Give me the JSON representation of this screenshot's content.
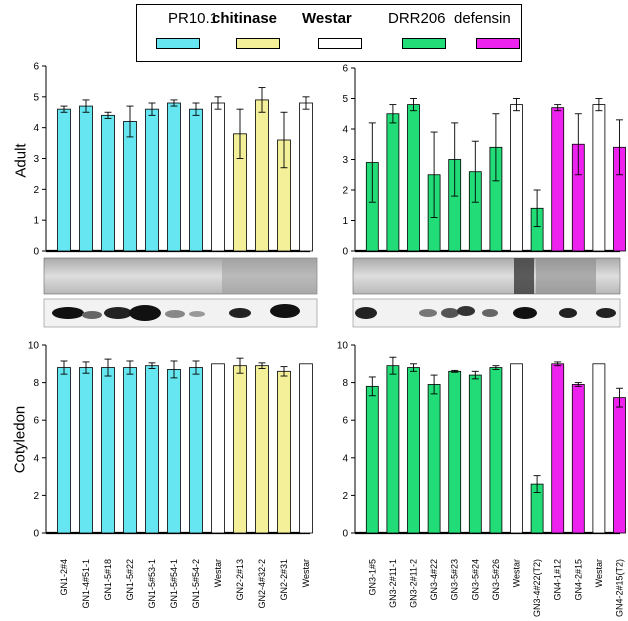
{
  "colors": {
    "PR10.1": "#66e6f0",
    "chitinase": "#f4f09a",
    "Westar": "#ffffff",
    "DRR206": "#22dd77",
    "defensin": "#ee22ee"
  },
  "legend": [
    {
      "label": "PR10.1",
      "key": "PR10.1",
      "bold": false
    },
    {
      "label": "chitinase",
      "key": "chitinase",
      "bold": true
    },
    {
      "label": "Westar",
      "key": "Westar",
      "bold": true
    },
    {
      "label": "DRR206",
      "key": "DRR206",
      "bold": false
    },
    {
      "label": "defensin",
      "key": "defensin",
      "bold": false
    }
  ],
  "row_labels": {
    "top": "Adult",
    "bottom": "Cotyledon"
  },
  "chart_data": [
    {
      "type": "bar",
      "panel": "adult-left",
      "ylim": [
        0,
        6
      ],
      "yticks": [
        "0",
        "1",
        "2",
        "3",
        "4",
        "5",
        "6"
      ],
      "categories": [
        "GN1-2#4",
        "GN1-4#51-1",
        "GN1-5#18",
        "GN1-5#22",
        "GN1-5#53-1",
        "GN1-5#54-1",
        "GN1-5#54-2",
        "Westar",
        "GN2-2#13",
        "GN2-4#32-2",
        "GN2-2#31",
        "Westar"
      ],
      "groups": [
        "PR10.1",
        "PR10.1",
        "PR10.1",
        "PR10.1",
        "PR10.1",
        "PR10.1",
        "PR10.1",
        "Westar",
        "chitinase",
        "chitinase",
        "chitinase",
        "Westar"
      ],
      "values": [
        4.6,
        4.7,
        4.4,
        4.2,
        4.6,
        4.8,
        4.6,
        4.8,
        3.8,
        4.9,
        3.6,
        4.8
      ],
      "errors": [
        0.1,
        0.2,
        0.1,
        0.5,
        0.2,
        0.1,
        0.2,
        0.2,
        0.8,
        0.4,
        0.9,
        0.2
      ]
    },
    {
      "type": "bar",
      "panel": "adult-right",
      "ylim": [
        0,
        6
      ],
      "yticks": [
        "0",
        "1",
        "2",
        "3",
        "4",
        "5",
        "6"
      ],
      "categories": [
        "GN3-1#5",
        "GN3-2#11-1",
        "GN3-2#11-2",
        "GN3-4#22",
        "GN3-5#23",
        "GN3-5#24",
        "GN3-5#26",
        "Westar",
        "GN3-4#22(T2)",
        "GN4-1#12",
        "GN4-2#15",
        "Westar",
        "GN4-2#15(T2)"
      ],
      "groups": [
        "DRR206",
        "DRR206",
        "DRR206",
        "DRR206",
        "DRR206",
        "DRR206",
        "DRR206",
        "Westar",
        "DRR206",
        "defensin",
        "defensin",
        "Westar",
        "defensin"
      ],
      "values": [
        2.9,
        4.5,
        4.8,
        2.5,
        3.0,
        2.6,
        3.4,
        4.8,
        1.4,
        4.7,
        3.5,
        4.8,
        3.4
      ],
      "errors": [
        1.3,
        0.3,
        0.2,
        1.4,
        1.2,
        1.0,
        1.1,
        0.2,
        0.6,
        0.1,
        1.0,
        0.2,
        0.9
      ]
    },
    {
      "type": "bar",
      "panel": "cotyledon-left",
      "ylim": [
        0,
        10
      ],
      "yticks": [
        "0",
        "2",
        "4",
        "6",
        "8",
        "10"
      ],
      "categories": [
        "GN1-2#4",
        "GN1-4#51-1",
        "GN1-5#18",
        "GN1-5#22",
        "GN1-5#53-1",
        "GN1-5#54-1",
        "GN1-5#54-2",
        "Westar",
        "GN2-2#13",
        "GN2-4#32-2",
        "GN2-2#31",
        "Westar"
      ],
      "groups": [
        "PR10.1",
        "PR10.1",
        "PR10.1",
        "PR10.1",
        "PR10.1",
        "PR10.1",
        "PR10.1",
        "Westar",
        "chitinase",
        "chitinase",
        "chitinase",
        "Westar"
      ],
      "values": [
        8.8,
        8.8,
        8.8,
        8.8,
        8.9,
        8.7,
        8.8,
        9.0,
        8.9,
        8.9,
        8.6,
        9.0
      ],
      "errors": [
        0.35,
        0.3,
        0.45,
        0.35,
        0.15,
        0.45,
        0.35,
        0,
        0.4,
        0.15,
        0.25,
        0
      ]
    },
    {
      "type": "bar",
      "panel": "cotyledon-right",
      "ylim": [
        0,
        10
      ],
      "yticks": [
        "0",
        "2",
        "4",
        "6",
        "8",
        "10"
      ],
      "categories": [
        "GN3-1#5",
        "GN3-2#11-1",
        "GN3-2#11-2",
        "GN3-4#22",
        "GN3-5#23",
        "GN3-5#24",
        "GN3-5#26",
        "Westar",
        "GN3-4#22(T2)",
        "GN4-1#12",
        "GN4-2#15",
        "Westar",
        "GN4-2#15(T2)"
      ],
      "groups": [
        "DRR206",
        "DRR206",
        "DRR206",
        "DRR206",
        "DRR206",
        "DRR206",
        "DRR206",
        "Westar",
        "DRR206",
        "defensin",
        "defensin",
        "Westar",
        "defensin"
      ],
      "values": [
        7.8,
        8.9,
        8.8,
        7.9,
        8.6,
        8.4,
        8.8,
        9.0,
        2.6,
        9.0,
        7.9,
        9.0,
        7.2
      ],
      "errors": [
        0.5,
        0.45,
        0.2,
        0.5,
        0.05,
        0.2,
        0.1,
        0,
        0.45,
        0.1,
        0.1,
        0,
        0.5
      ]
    }
  ]
}
